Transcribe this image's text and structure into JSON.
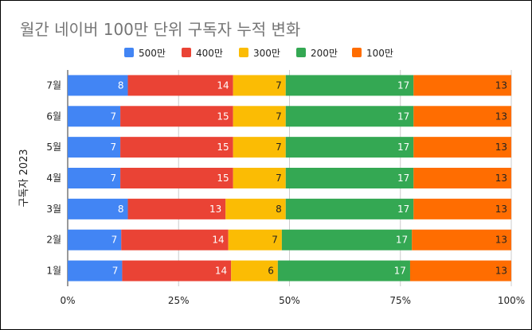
{
  "chart_data": {
    "type": "bar",
    "orientation": "horizontal",
    "stacked": "percent",
    "title": "월간 네이버 100만 단위 구독자 누적 변화",
    "xlabel": "",
    "ylabel": "구독자 2023",
    "categories": [
      "1월",
      "2월",
      "3월",
      "4월",
      "5월",
      "6월",
      "7월"
    ],
    "series": [
      {
        "name": "500만",
        "color": "#4285f4",
        "label_color": "#ffffff",
        "values": [
          7,
          7,
          8,
          7,
          7,
          7,
          8
        ]
      },
      {
        "name": "400만",
        "color": "#ea4335",
        "label_color": "#ffffff",
        "values": [
          14,
          14,
          13,
          15,
          15,
          15,
          14
        ]
      },
      {
        "name": "300만",
        "color": "#fbbc04",
        "label_color": "#222222",
        "values": [
          6,
          7,
          8,
          7,
          7,
          7,
          7
        ]
      },
      {
        "name": "200만",
        "color": "#34a853",
        "label_color": "#ffffff",
        "values": [
          17,
          17,
          17,
          17,
          17,
          17,
          17
        ]
      },
      {
        "name": "100만",
        "color": "#ff6d01",
        "label_color": "#222222",
        "values": [
          13,
          13,
          13,
          13,
          13,
          13,
          13
        ]
      }
    ],
    "xticks": [
      "0%",
      "25%",
      "50%",
      "75%",
      "100%"
    ],
    "xlim": [
      0,
      100
    ],
    "grid": true,
    "legend_position": "top"
  }
}
